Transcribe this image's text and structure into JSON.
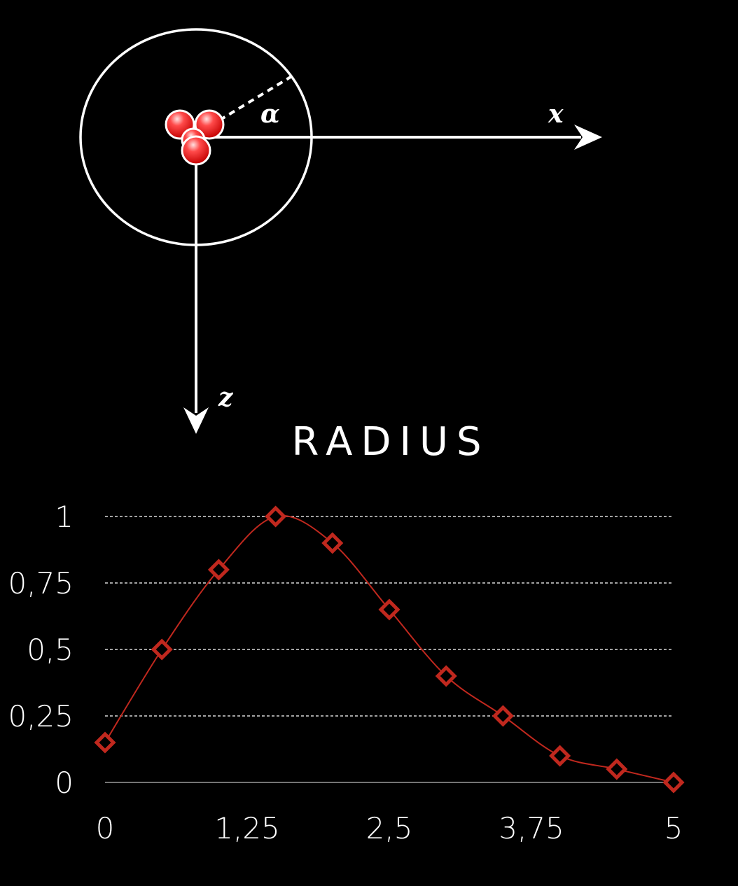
{
  "diagram": {
    "x_axis_label": "x",
    "z_axis_label": "z",
    "angle_label": "α"
  },
  "chart_data": {
    "type": "line",
    "title": "RADIUS",
    "xlabel": "",
    "ylabel": "",
    "x_ticks": [
      "0",
      "1,25",
      "2,5",
      "3,75",
      "5"
    ],
    "y_ticks": [
      "0",
      "0,25",
      "0,5",
      "0,75",
      "1"
    ],
    "xlim": [
      0,
      5
    ],
    "ylim": [
      0,
      1
    ],
    "grid": "horizontal dashed",
    "series": [
      {
        "color": "#c0281e",
        "marker": "diamond",
        "x": [
          0,
          0.5,
          1.0,
          1.5,
          2.0,
          2.5,
          3.0,
          3.5,
          4.0,
          4.5,
          5.0
        ],
        "y": [
          0.15,
          0.5,
          0.8,
          1.0,
          0.9,
          0.65,
          0.4,
          0.25,
          0.1,
          0.05,
          0.0
        ]
      }
    ]
  }
}
